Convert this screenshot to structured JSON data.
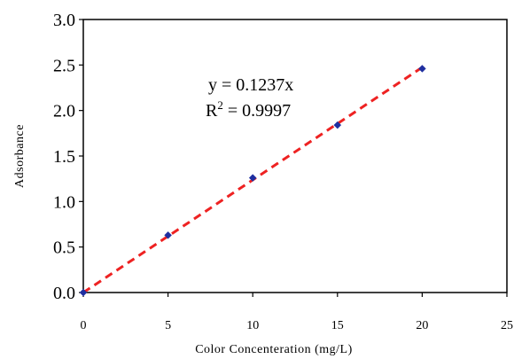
{
  "chart_data": {
    "type": "scatter",
    "xlabel": "Color Concenteration  (mg/L)",
    "ylabel": "Adsorbance",
    "xlim": [
      0,
      25
    ],
    "ylim": [
      0,
      3.0
    ],
    "x_ticks": [
      "0",
      "5",
      "10",
      "15",
      "20",
      "25"
    ],
    "y_ticks": [
      "0.0",
      "0.5",
      "1.0",
      "1.5",
      "2.0",
      "2.5",
      "3.0"
    ],
    "grid": false,
    "legend": "none",
    "series": [
      {
        "x": [
          0,
          5,
          10,
          15,
          20
        ],
        "y": [
          0.0,
          0.63,
          1.26,
          1.84,
          2.46
        ],
        "marker": "diamond",
        "color": "#1f2fa0"
      }
    ],
    "trendline": {
      "slope": 0.1237,
      "x_range": [
        0,
        20
      ],
      "style": "dashed",
      "color": "#ee2222"
    },
    "annotations": {
      "equation": "y = 0.1237x",
      "r2_prefix": "R",
      "r2_sup": "2",
      "r2_value": " = 0.9997"
    }
  }
}
